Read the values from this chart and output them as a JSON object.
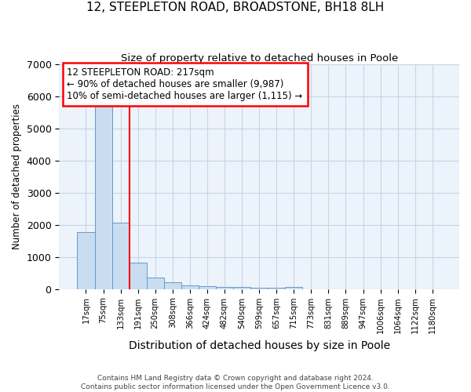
{
  "title": "12, STEEPLETON ROAD, BROADSTONE, BH18 8LH",
  "subtitle": "Size of property relative to detached houses in Poole",
  "xlabel": "Distribution of detached houses by size in Poole",
  "ylabel": "Number of detached properties",
  "footer_line1": "Contains HM Land Registry data © Crown copyright and database right 2024.",
  "footer_line2": "Contains public sector information licensed under the Open Government Licence v3.0.",
  "categories": [
    "17sqm",
    "75sqm",
    "133sqm",
    "191sqm",
    "250sqm",
    "308sqm",
    "366sqm",
    "424sqm",
    "482sqm",
    "540sqm",
    "599sqm",
    "657sqm",
    "715sqm",
    "773sqm",
    "831sqm",
    "889sqm",
    "947sqm",
    "1006sqm",
    "1064sqm",
    "1122sqm",
    "1180sqm"
  ],
  "values": [
    1780,
    5750,
    2060,
    830,
    370,
    210,
    115,
    85,
    70,
    55,
    45,
    35,
    75,
    0,
    0,
    0,
    0,
    0,
    0,
    0,
    0
  ],
  "bar_color": "#c8ddf0",
  "bar_edge_color": "#6699cc",
  "grid_color": "#c5d5e8",
  "bg_color": "#ffffff",
  "plot_bg_color": "#edf3fb",
  "annotation_text": "12 STEEPLETON ROAD: 217sqm\n← 90% of detached houses are smaller (9,987)\n10% of semi-detached houses are larger (1,115) →",
  "red_line_x": 2.5,
  "ylim": [
    0,
    7000
  ],
  "yticks": [
    0,
    1000,
    2000,
    3000,
    4000,
    5000,
    6000,
    7000
  ]
}
